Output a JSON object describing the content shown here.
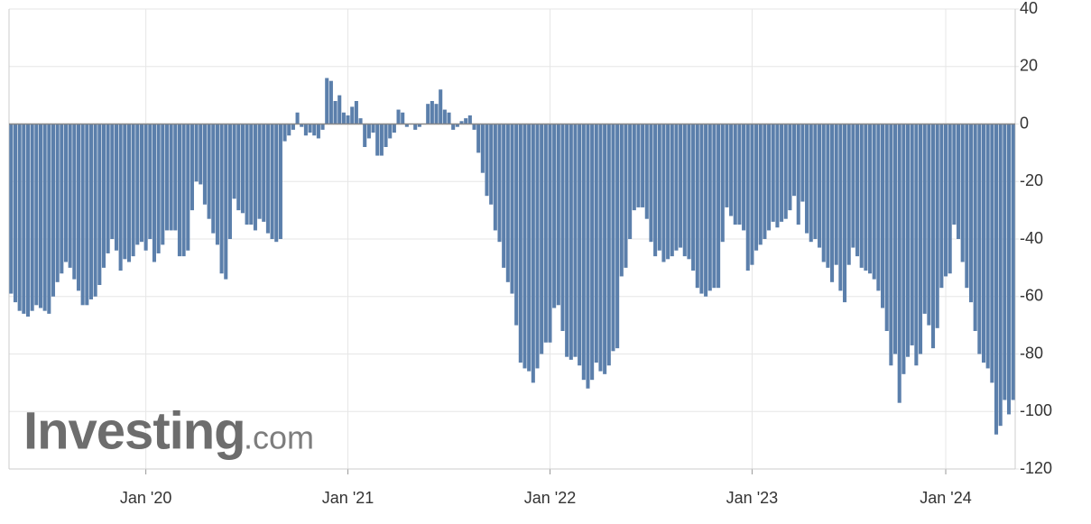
{
  "chart_data": {
    "type": "bar",
    "color": "#5b7fab",
    "grid": true,
    "watermark": {
      "brand": "Investing",
      "suffix": ".com"
    },
    "ylim": [
      -120,
      40
    ],
    "yticks": [
      40,
      20,
      0,
      -20,
      -40,
      -60,
      -80,
      -100,
      -120
    ],
    "categories": [
      null,
      null,
      null,
      null,
      null,
      null,
      null,
      null,
      null,
      null,
      null,
      null,
      null,
      null,
      null,
      null,
      null,
      null,
      null,
      null,
      null,
      null,
      null,
      null,
      null,
      null,
      null,
      null,
      null,
      null,
      null,
      null,
      "Jan '20",
      null,
      null,
      null,
      null,
      null,
      null,
      null,
      null,
      null,
      null,
      null,
      null,
      null,
      null,
      null,
      null,
      null,
      null,
      null,
      null,
      null,
      null,
      null,
      null,
      null,
      null,
      null,
      null,
      null,
      null,
      null,
      null,
      null,
      null,
      null,
      null,
      null,
      null,
      null,
      null,
      null,
      null,
      null,
      null,
      null,
      null,
      null,
      "Jan '21",
      null,
      null,
      null,
      null,
      null,
      null,
      null,
      null,
      null,
      null,
      null,
      null,
      null,
      null,
      null,
      null,
      null,
      null,
      null,
      null,
      null,
      null,
      null,
      null,
      null,
      null,
      null,
      null,
      null,
      null,
      null,
      null,
      null,
      null,
      null,
      null,
      null,
      null,
      null,
      null,
      null,
      null,
      null,
      null,
      null,
      null,
      null,
      "Jan '22",
      null,
      null,
      null,
      null,
      null,
      null,
      null,
      null,
      null,
      null,
      null,
      null,
      null,
      null,
      null,
      null,
      null,
      null,
      null,
      null,
      null,
      null,
      null,
      null,
      null,
      null,
      null,
      null,
      null,
      null,
      null,
      null,
      null,
      null,
      null,
      null,
      null,
      null,
      null,
      null,
      null,
      null,
      null,
      null,
      null,
      null,
      null,
      "Jan '23",
      null,
      null,
      null,
      null,
      null,
      null,
      null,
      null,
      null,
      null,
      null,
      null,
      null,
      null,
      null,
      null,
      null,
      null,
      null,
      null,
      null,
      null,
      null,
      null,
      null,
      null,
      null,
      null,
      null,
      null,
      null,
      null,
      null,
      null,
      null,
      null,
      null,
      null,
      null,
      null,
      null,
      null,
      null,
      null,
      null,
      "Jan '24",
      null,
      null,
      null,
      null,
      null,
      null,
      null,
      null,
      null,
      null,
      null,
      null,
      null,
      null,
      null,
      null
    ],
    "values": [
      -59,
      -62,
      -65,
      -66,
      -67,
      -65,
      -63,
      -64,
      -65,
      -66,
      -60,
      -55,
      -52,
      -48,
      -50,
      -54,
      -58,
      -63,
      -63,
      -61,
      -60,
      -56,
      -50,
      -45,
      -40,
      -44,
      -51,
      -47,
      -48,
      -46,
      -42,
      -41,
      -44,
      -40,
      -48,
      -45,
      -42,
      -37,
      -37,
      -37,
      -46,
      -46,
      -44,
      -30,
      -20,
      -21,
      -28,
      -33,
      -38,
      -42,
      -52,
      -54,
      -40,
      -26,
      -30,
      -31,
      -35,
      -35,
      -37,
      -33,
      -34,
      -38,
      -40,
      -41,
      -40,
      -6,
      -4,
      -2,
      4,
      -1,
      -4,
      -3,
      -4,
      -5,
      -2,
      16,
      15,
      8,
      10,
      4,
      3,
      6,
      8,
      2,
      -8,
      -5,
      -3,
      -11,
      -11,
      -8,
      -5,
      -3,
      5,
      4,
      -1,
      0,
      -2,
      -1,
      0,
      7,
      8,
      7,
      12,
      5,
      4,
      -2,
      -1,
      1,
      2,
      3,
      -2,
      -10,
      -17,
      -25,
      -28,
      -37,
      -41,
      -50,
      -55,
      -59,
      -70,
      -83,
      -85,
      -86,
      -90,
      -85,
      -80,
      -76,
      -76,
      -64,
      -63,
      -72,
      -81,
      -82,
      -81,
      -84,
      -89,
      -92,
      -89,
      -83,
      -86,
      -87,
      -84,
      -79,
      -78,
      -53,
      -50,
      -40,
      -30,
      -29,
      -29,
      -33,
      -41,
      -46,
      -44,
      -48,
      -47,
      -46,
      -44,
      -43,
      -46,
      -47,
      -51,
      -57,
      -59,
      -60,
      -58,
      -57,
      -57,
      -41,
      -29,
      -32,
      -35,
      -35,
      -37,
      -51,
      -49,
      -44,
      -42,
      -40,
      -37,
      -34,
      -36,
      -34,
      -33,
      -30,
      -25,
      -35,
      -27,
      -38,
      -41,
      -40,
      -43,
      -48,
      -50,
      -55,
      -49,
      -58,
      -62,
      -49,
      -43,
      -46,
      -50,
      -51,
      -52,
      -54,
      -58,
      -64,
      -72,
      -84,
      -80,
      -97,
      -87,
      -81,
      -77,
      -84,
      -80,
      -66,
      -70,
      -78,
      -71,
      -57,
      -53,
      -52,
      -35,
      -40,
      -48,
      -57,
      -62,
      -72,
      -80,
      -83,
      -85,
      -90,
      -108,
      -105,
      -96,
      -101,
      -96
    ]
  }
}
